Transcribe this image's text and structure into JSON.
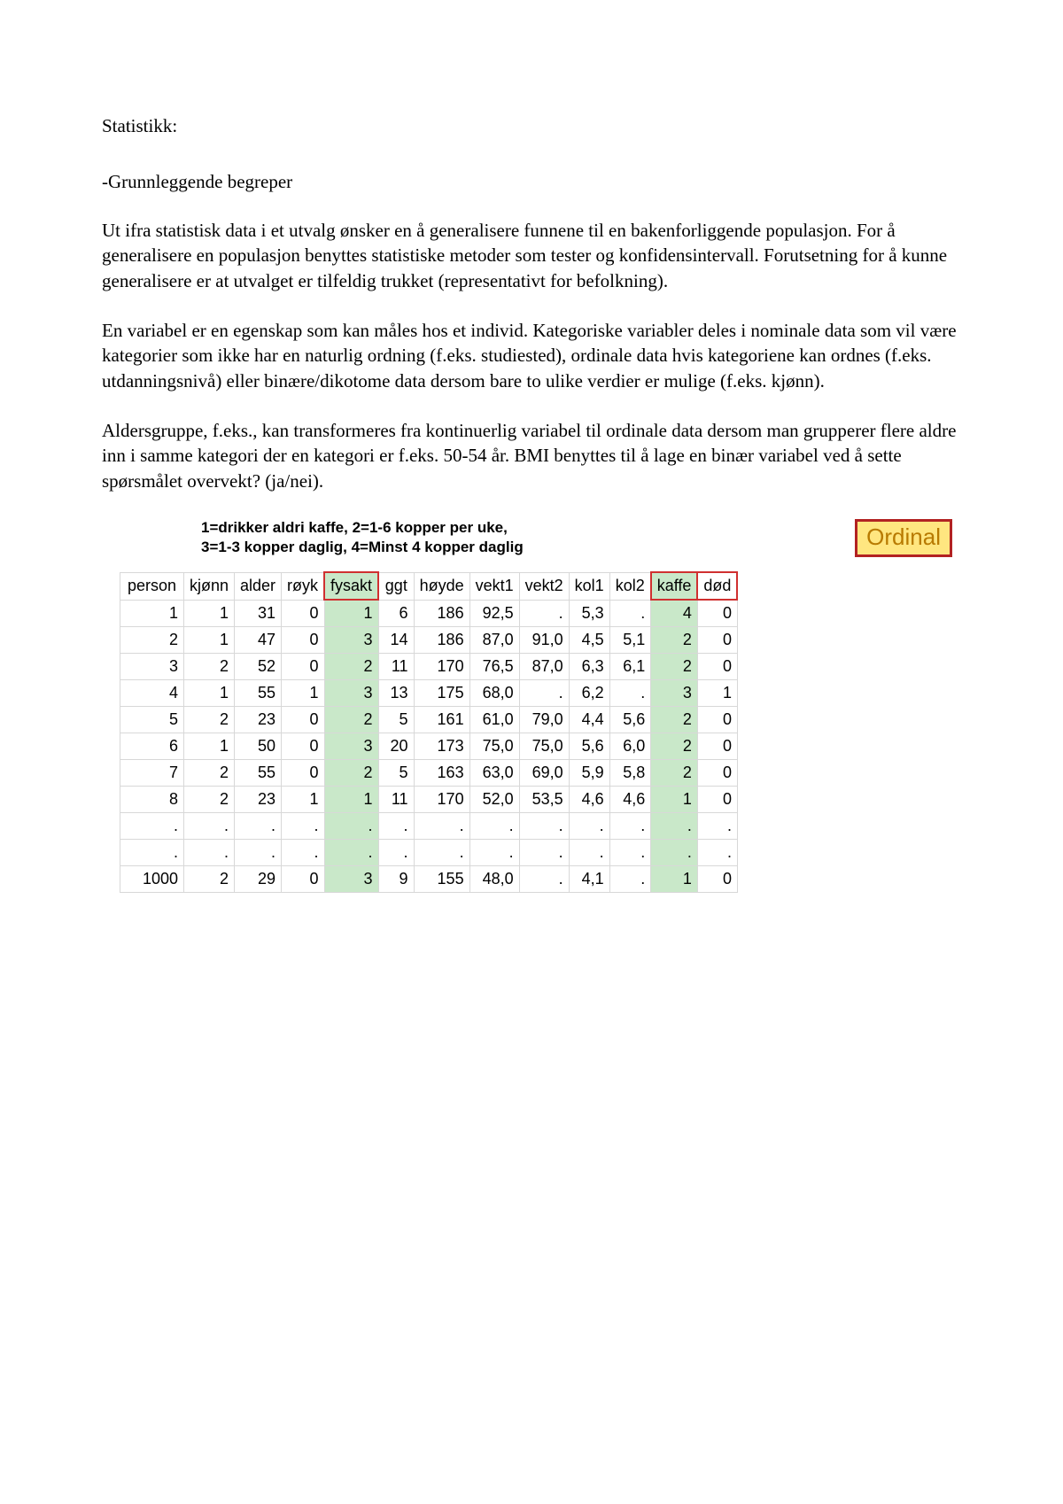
{
  "heading": "Statistikk:",
  "subheading": "-Grunnleggende begreper",
  "para1": "Ut ifra statistisk data i et utvalg ønsker en å generalisere funnene til en bakenforliggende populasjon. For å generalisere en populasjon benyttes statistiske metoder som tester og konfidensintervall. Forutsetning for å kunne generalisere er at utvalget er tilfeldig trukket (representativt for befolkning).",
  "para2": "En variabel er en egenskap som kan måles hos et individ. Kategoriske variabler deles i nominale data som vil være kategorier som ikke har en naturlig ordning (f.eks. studiested), ordinale data hvis kategoriene kan ordnes (f.eks. utdanningsnivå) eller binære/dikotome data dersom bare to ulike verdier er mulige (f.eks. kjønn).",
  "para3": "Aldersgruppe, f.eks., kan transformeres fra kontinuerlig variabel til ordinale data dersom man grupperer flere aldre inn i samme kategori der en kategori er f.eks. 50-54 år. BMI benyttes til å lage en binær variabel ved å sette spørsmålet overvekt? (ja/nei).",
  "caption_line1": "1=drikker aldri kaffe, 2=1-6 kopper per uke,",
  "caption_line2": "3=1-3 kopper daglig, 4=Minst 4 kopper daglig",
  "ordinal_label": "Ordinal",
  "table": {
    "columns": [
      "person",
      "kjønn",
      "alder",
      "røyk",
      "fysakt",
      "ggt",
      "høyde",
      "vekt1",
      "vekt2",
      "kol1",
      "kol2",
      "kaffe",
      "død"
    ],
    "highlight_cols": [
      "fysakt",
      "kaffe"
    ],
    "red_border_cols": [
      "fysakt",
      "kaffe",
      "død"
    ],
    "rows": [
      [
        "1",
        "1",
        "31",
        "0",
        "1",
        "6",
        "186",
        "92,5",
        ".",
        "5,3",
        ".",
        "4",
        "0"
      ],
      [
        "2",
        "1",
        "47",
        "0",
        "3",
        "14",
        "186",
        "87,0",
        "91,0",
        "4,5",
        "5,1",
        "2",
        "0"
      ],
      [
        "3",
        "2",
        "52",
        "0",
        "2",
        "11",
        "170",
        "76,5",
        "87,0",
        "6,3",
        "6,1",
        "2",
        "0"
      ],
      [
        "4",
        "1",
        "55",
        "1",
        "3",
        "13",
        "175",
        "68,0",
        ".",
        "6,2",
        ".",
        "3",
        "1"
      ],
      [
        "5",
        "2",
        "23",
        "0",
        "2",
        "5",
        "161",
        "61,0",
        "79,0",
        "4,4",
        "5,6",
        "2",
        "0"
      ],
      [
        "6",
        "1",
        "50",
        "0",
        "3",
        "20",
        "173",
        "75,0",
        "75,0",
        "5,6",
        "6,0",
        "2",
        "0"
      ],
      [
        "7",
        "2",
        "55",
        "0",
        "2",
        "5",
        "163",
        "63,0",
        "69,0",
        "5,9",
        "5,8",
        "2",
        "0"
      ],
      [
        "8",
        "2",
        "23",
        "1",
        "1",
        "11",
        "170",
        "52,0",
        "53,5",
        "4,6",
        "4,6",
        "1",
        "0"
      ],
      [
        ".",
        ".",
        ".",
        ".",
        ".",
        ".",
        ".",
        ".",
        ".",
        ".",
        ".",
        ".",
        "."
      ],
      [
        ".",
        ".",
        ".",
        ".",
        ".",
        ".",
        ".",
        ".",
        ".",
        ".",
        ".",
        ".",
        "."
      ],
      [
        "1000",
        "2",
        "29",
        "0",
        "3",
        "9",
        "155",
        "48,0",
        ".",
        "4,1",
        ".",
        "1",
        "0"
      ]
    ]
  },
  "colors": {
    "highlight_green": "#c9e8c9",
    "ordinal_bg": "#ffe680",
    "ordinal_border": "#b22222",
    "ordinal_text": "#b87a00",
    "grid": "#d8d8d8",
    "red_border": "#d03030"
  }
}
